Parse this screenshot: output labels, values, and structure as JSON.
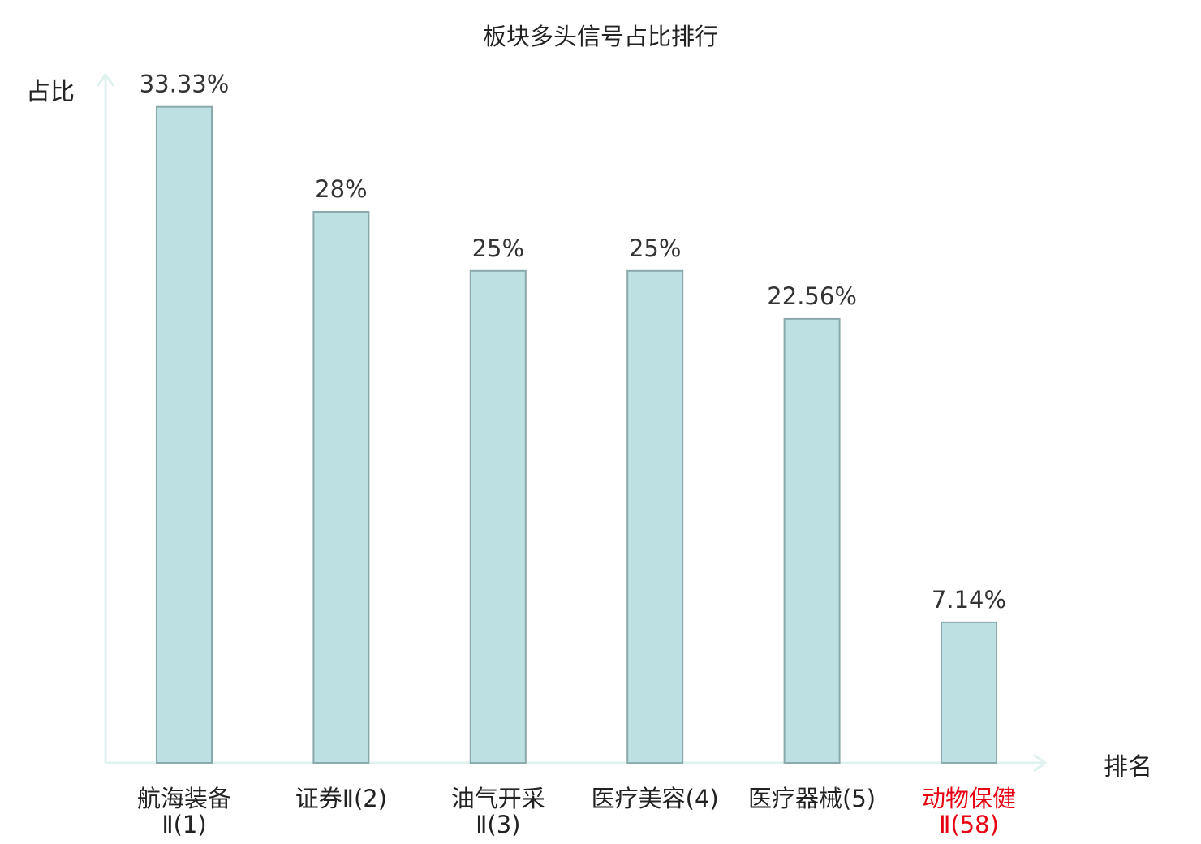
{
  "chart_data": {
    "type": "bar",
    "title": "板块多头信号占比排行",
    "ylabel": "占比",
    "xlabel": "排名",
    "ylim": [
      0,
      35
    ],
    "grid": false,
    "categories": [
      {
        "line1": "航海装备",
        "line2": "Ⅱ(1)",
        "highlight": false
      },
      {
        "line1": "证券Ⅱ(2)",
        "line2": "",
        "highlight": false
      },
      {
        "line1": "油气开采",
        "line2": "Ⅱ(3)",
        "highlight": false
      },
      {
        "line1": "医疗美容(4)",
        "line2": "",
        "highlight": false
      },
      {
        "line1": "医疗器械(5)",
        "line2": "",
        "highlight": false
      },
      {
        "line1": "动物保健",
        "line2": "Ⅱ(58)",
        "highlight": true
      }
    ],
    "values": [
      33.33,
      28,
      25,
      25,
      22.56,
      7.14
    ],
    "value_labels": [
      "33.33%",
      "28%",
      "25%",
      "25%",
      "22.56%",
      "7.14%"
    ]
  },
  "colors": {
    "bar_fill": "#bde0e3",
    "bar_stroke": "#8aa9aa",
    "axis": "#e0f2ef",
    "text": "#222222",
    "value_text": "#333333",
    "highlight": "#e60012"
  }
}
